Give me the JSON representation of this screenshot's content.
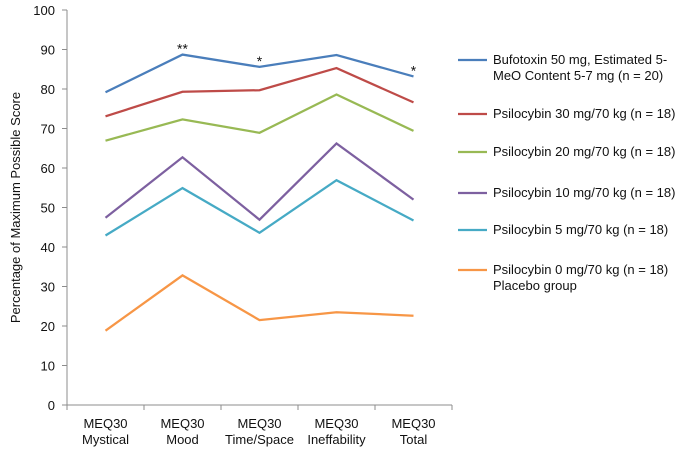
{
  "chart_data": {
    "type": "line",
    "ylabel": "Percentage of Maximum Possible Score",
    "xlabel": "",
    "ylim": [
      0,
      100
    ],
    "yticks": [
      0,
      10,
      20,
      30,
      40,
      50,
      60,
      70,
      80,
      90,
      100
    ],
    "grid": false,
    "legend_position": "right",
    "categories": [
      [
        "MEQ30",
        "Mystical"
      ],
      [
        "MEQ30",
        "Mood"
      ],
      [
        "MEQ30",
        "Time/Space"
      ],
      [
        "MEQ30",
        "Ineffability"
      ],
      [
        "MEQ30",
        "Total"
      ]
    ],
    "series": [
      {
        "name": "Bufotoxin 50 mg, Estimated 5-MeO Content 5-7 mg (n = 20)",
        "legend_lines": [
          "Bufotoxin 50 mg, Estimated 5-",
          "MeO Content 5-7 mg (n = 20)"
        ],
        "color": "#4a7ebb",
        "values": [
          79.2,
          88.7,
          85.6,
          88.6,
          83.2
        ]
      },
      {
        "name": "Psilocybin 30 mg/70 kg (n = 18)",
        "legend_lines": [
          "Psilocybin 30 mg/70 kg (n = 18)"
        ],
        "color": "#be4b48",
        "values": [
          73.1,
          79.3,
          79.7,
          85.3,
          76.6
        ]
      },
      {
        "name": "Psilocybin 20 mg/70 kg (n = 18)",
        "legend_lines": [
          "Psilocybin 20 mg/70 kg (n = 18)"
        ],
        "color": "#98b954",
        "values": [
          66.9,
          72.3,
          68.9,
          78.6,
          69.4
        ]
      },
      {
        "name": "Psilocybin 10 mg/70 kg (n = 18)",
        "legend_lines": [
          "Psilocybin 10 mg/70 kg (n = 18)"
        ],
        "color": "#7d60a0",
        "values": [
          47.4,
          62.7,
          46.9,
          66.2,
          52.0
        ]
      },
      {
        "name": "Psilocybin 5 mg/70 kg (n = 18)",
        "legend_lines": [
          "Psilocybin 5 mg/70 kg (n = 18)"
        ],
        "color": "#46aac5",
        "values": [
          42.9,
          54.9,
          43.6,
          56.9,
          46.7
        ]
      },
      {
        "name": "Psilocybin 0 mg/70 kg (n = 18) Placebo group",
        "legend_lines": [
          "Psilocybin 0 mg/70 kg (n = 18)",
          "Placebo group"
        ],
        "color": "#f79646",
        "values": [
          18.8,
          32.8,
          21.5,
          23.5,
          22.6
        ]
      }
    ],
    "annotations": [
      {
        "text": "**",
        "category_index": 1,
        "y": 90.5
      },
      {
        "text": "*",
        "category_index": 2,
        "y": 87.3
      },
      {
        "text": "*",
        "category_index": 4,
        "y": 84.9
      }
    ]
  }
}
